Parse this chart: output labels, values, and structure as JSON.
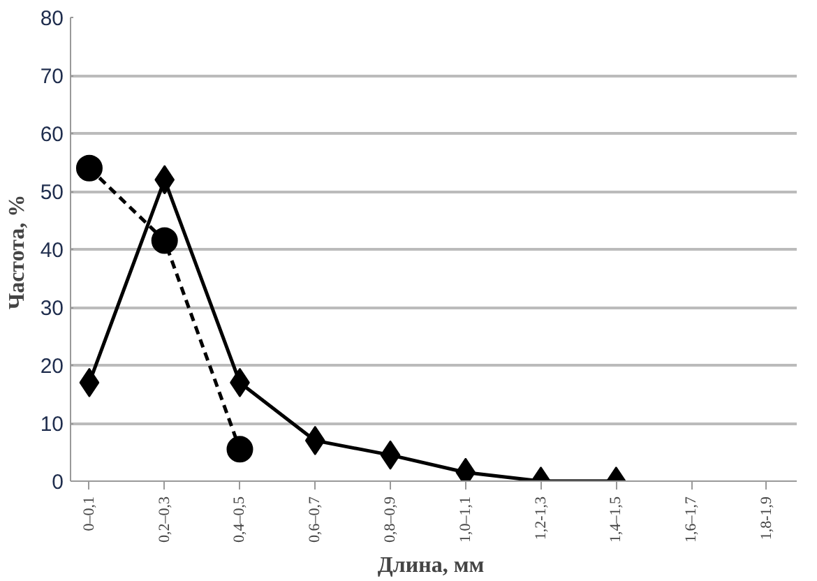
{
  "chart_data": {
    "type": "line",
    "xlabel": "Длина,  мм",
    "ylabel": "Частота,  %",
    "categories": [
      "0–0,1",
      "0,2–0,3",
      "0,4–0,5",
      "0,6–0,7",
      "0,8–0,9",
      "1,0–1,1",
      "1,2-1,3",
      "1,4–1,5",
      "1,6–1,7",
      "1,8-1,9"
    ],
    "series": [
      {
        "color": "#000000",
        "marker": "diamond",
        "line_style": "solid",
        "values": [
          17,
          52,
          17,
          7,
          4.5,
          1.5,
          0,
          0,
          null,
          null
        ]
      },
      {
        "color": "#000000",
        "marker": "circle",
        "line_style": "dashed",
        "values": [
          54,
          41.5,
          5.5,
          null,
          null,
          null,
          null,
          null,
          null,
          null
        ]
      }
    ],
    "ylim": [
      0,
      80
    ],
    "yticks": [
      0,
      10,
      20,
      30,
      40,
      50,
      60,
      70,
      80
    ],
    "grid": "y"
  }
}
